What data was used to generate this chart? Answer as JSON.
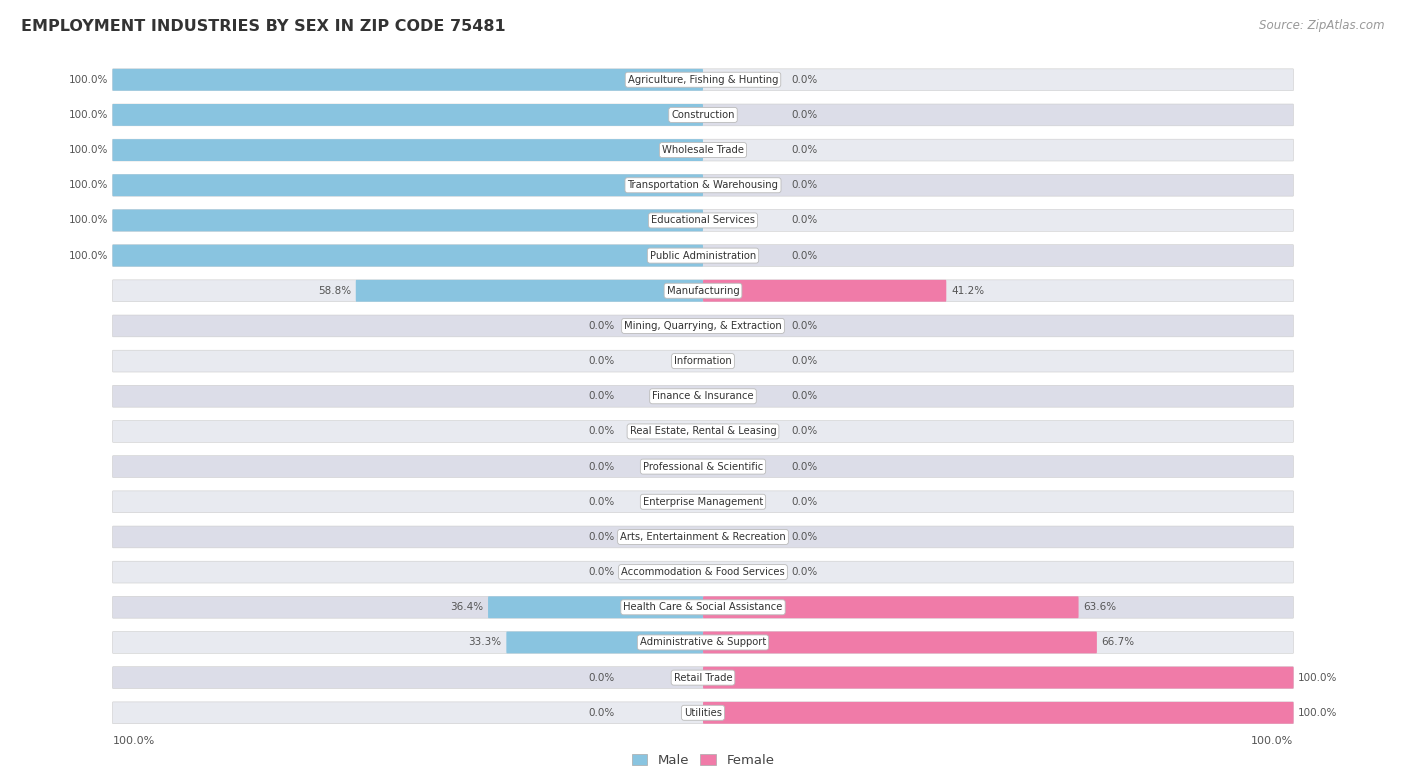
{
  "title": "EMPLOYMENT INDUSTRIES BY SEX IN ZIP CODE 75481",
  "source": "Source: ZipAtlas.com",
  "industries": [
    "Agriculture, Fishing & Hunting",
    "Construction",
    "Wholesale Trade",
    "Transportation & Warehousing",
    "Educational Services",
    "Public Administration",
    "Manufacturing",
    "Mining, Quarrying, & Extraction",
    "Information",
    "Finance & Insurance",
    "Real Estate, Rental & Leasing",
    "Professional & Scientific",
    "Enterprise Management",
    "Arts, Entertainment & Recreation",
    "Accommodation & Food Services",
    "Health Care & Social Assistance",
    "Administrative & Support",
    "Retail Trade",
    "Utilities"
  ],
  "male_pct": [
    100.0,
    100.0,
    100.0,
    100.0,
    100.0,
    100.0,
    58.8,
    0.0,
    0.0,
    0.0,
    0.0,
    0.0,
    0.0,
    0.0,
    0.0,
    36.4,
    33.3,
    0.0,
    0.0
  ],
  "female_pct": [
    0.0,
    0.0,
    0.0,
    0.0,
    0.0,
    0.0,
    41.2,
    0.0,
    0.0,
    0.0,
    0.0,
    0.0,
    0.0,
    0.0,
    0.0,
    63.6,
    66.7,
    100.0,
    100.0
  ],
  "male_color": "#89C4E0",
  "female_color": "#F07BA8",
  "bar_bg_light": "#E8EAF0",
  "bar_bg_dark": "#DCDDE8",
  "title_color": "#333333",
  "source_color": "#999999",
  "value_color": "#555555",
  "legend_label_color": "#444444",
  "figsize": [
    14.06,
    7.77
  ],
  "dpi": 100
}
